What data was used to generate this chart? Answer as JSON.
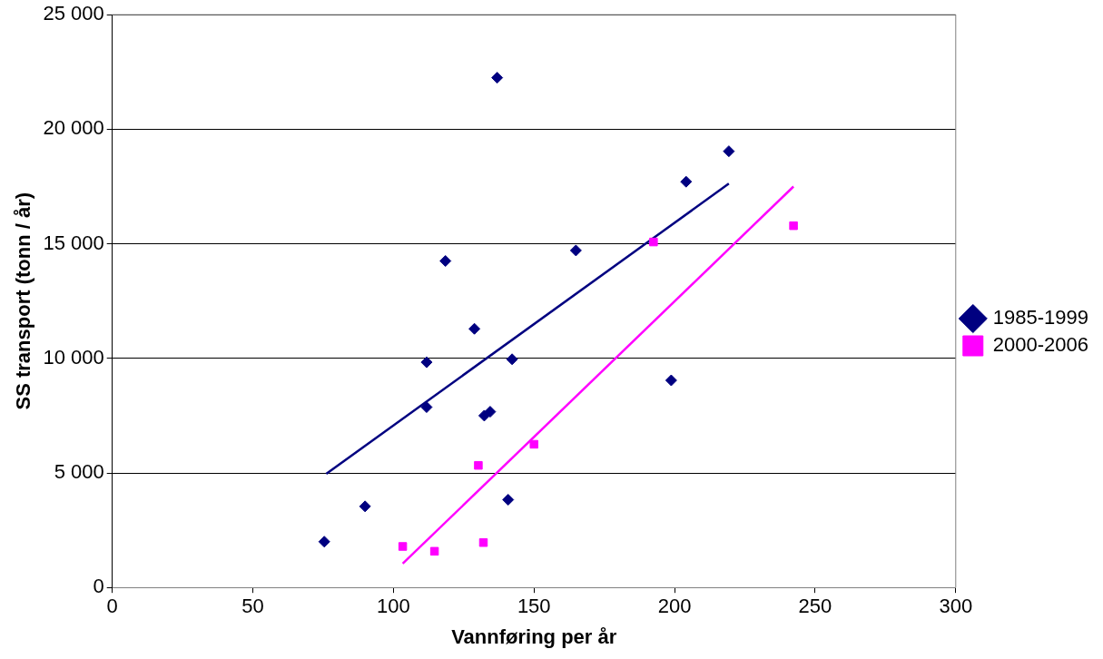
{
  "chart_data": {
    "type": "scatter",
    "xlabel": "Vannføring per år",
    "ylabel": "SS transport (tonn / år)",
    "xlim": [
      0,
      300
    ],
    "xticks": [
      0,
      50,
      100,
      150,
      200,
      250,
      300
    ],
    "ylim": [
      0,
      25000
    ],
    "yticks": [
      {
        "value": 0,
        "label": "0"
      },
      {
        "value": 5000,
        "label": "5 000"
      },
      {
        "value": 10000,
        "label": "10 000"
      },
      {
        "value": 15000,
        "label": "15 000"
      },
      {
        "value": 20000,
        "label": "20 000"
      },
      {
        "value": 25000,
        "label": "25 000"
      }
    ],
    "grid": "y",
    "legend": "right",
    "series": [
      {
        "name": "1985-1999",
        "color": "#000080",
        "marker": "diamond",
        "x": [
          75.4,
          89.9,
          111.8,
          111.8,
          118.5,
          128.8,
          132.3,
          134.4,
          136.9,
          140.8,
          142.2,
          164.9,
          198.8,
          204.1,
          219.3
        ],
        "values": [
          2000,
          3540,
          9830,
          7870,
          14250,
          11290,
          7500,
          7670,
          22250,
          3830,
          9960,
          14710,
          9040,
          17710,
          19040
        ]
      },
      {
        "name": "2000-2006",
        "color": "#ff00ff",
        "marker": "square",
        "x": [
          103.3,
          114.6,
          130.2,
          132.0,
          150.0,
          192.5,
          242.3
        ],
        "values": [
          1790,
          1580,
          5330,
          1960,
          6250,
          15080,
          15790
        ]
      },
      {
        "type": "line",
        "color": "#000080",
        "marker": "none",
        "line_style": "solid",
        "x": [
          76.1,
          219.3
        ],
        "values": [
          4960,
          17625
        ]
      },
      {
        "type": "line",
        "color": "#ff00ff",
        "marker": "none",
        "line_style": "solid",
        "x": [
          103.3,
          242.3
        ],
        "values": [
          1040,
          17500
        ]
      }
    ]
  }
}
